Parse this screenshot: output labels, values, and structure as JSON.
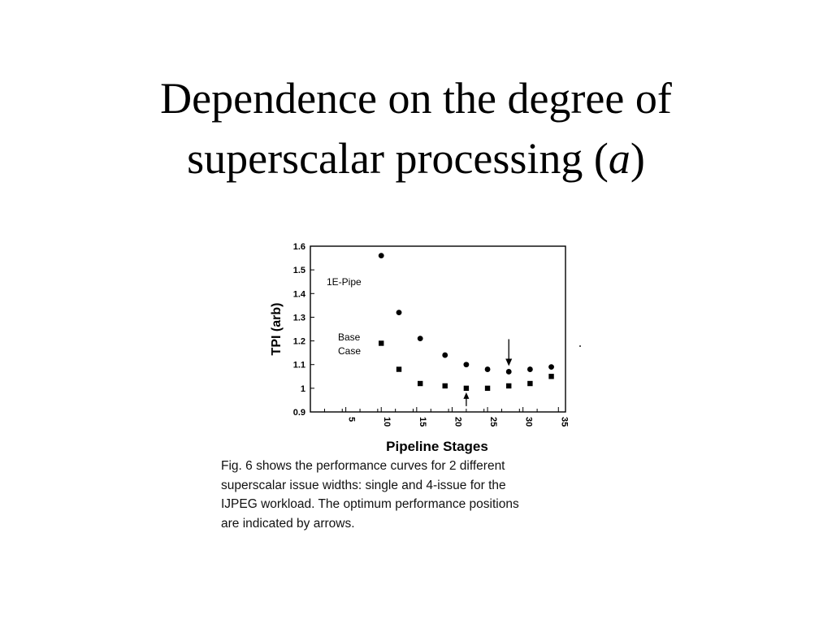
{
  "slide": {
    "title_line1": "Dependence on the degree of",
    "title_line2_prefix": "superscalar processing (",
    "title_line2_var": "a",
    "title_line2_suffix": ")"
  },
  "caption_lines": [
    "Fig. 6 shows the performance curves for 2 different",
    "superscalar issue widths: single and 4-issue for the",
    "IJPEG workload.  The optimum performance positions",
    "are indicated by arrows."
  ],
  "chart_data": {
    "type": "scatter",
    "xlabel": "Pipeline Stages",
    "ylabel": "TPI (arb)",
    "xlim": [
      0,
      36
    ],
    "ylim": [
      0.9,
      1.6
    ],
    "xticks": [
      "5",
      "10",
      "15",
      "20",
      "25",
      "30",
      "35"
    ],
    "yticks": [
      "0.9",
      "1",
      "1.1",
      "1.2",
      "1.3",
      "1.4",
      "1.5",
      "1.6"
    ],
    "grid": false,
    "series": [
      {
        "name": "1E-Pipe",
        "marker": "circle",
        "x": [
          10,
          12.5,
          15.5,
          19,
          22,
          25,
          28,
          31,
          34
        ],
        "y": [
          1.56,
          1.32,
          1.21,
          1.14,
          1.1,
          1.08,
          1.07,
          1.08,
          1.09
        ]
      },
      {
        "name": "Base Case",
        "marker": "square",
        "x": [
          10,
          12.5,
          15.5,
          19,
          22,
          25,
          28,
          31,
          34
        ],
        "y": [
          1.19,
          1.08,
          1.02,
          1.01,
          1.0,
          1.0,
          1.01,
          1.02,
          1.05
        ]
      }
    ],
    "optimum_arrows": [
      {
        "series": "1E-Pipe",
        "x": 28
      },
      {
        "series": "Base Case",
        "x": 22
      }
    ]
  }
}
